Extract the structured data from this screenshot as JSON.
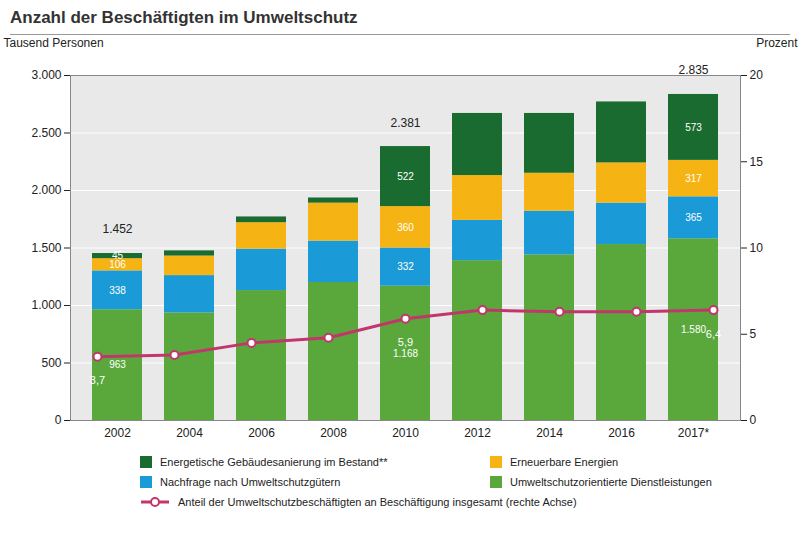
{
  "chart_data": {
    "type": "bar",
    "title": "Anzahl der Beschäftigten im Umweltschutz",
    "stacked": true,
    "data_labels": true,
    "grid": true,
    "legend": "bottom",
    "y_label": "Tausend Personen",
    "y2_label": "Prozent",
    "categories": [
      "2002",
      "2004",
      "2006",
      "2008",
      "2010",
      "2012",
      "2014",
      "2016",
      "2017*"
    ],
    "series": [
      {
        "name": "Umweltschutzorientierte Dienstleistungen",
        "type": "bar",
        "color": "#5aa83c",
        "values": [
          963,
          935,
          1130,
          1200,
          1168,
          1390,
          1440,
          1530,
          1580
        ],
        "value_labels": [
          "963",
          null,
          null,
          null,
          "1.168",
          null,
          null,
          null,
          "1.580"
        ]
      },
      {
        "name": "Nachfrage nach Umweltschutzgütern",
        "type": "bar",
        "color": "#1a9ad6",
        "values": [
          338,
          325,
          360,
          360,
          332,
          350,
          380,
          360,
          365
        ],
        "value_labels": [
          "338",
          null,
          null,
          null,
          "332",
          null,
          null,
          null,
          "365"
        ]
      },
      {
        "name": "Erneuerbare Energien",
        "type": "bar",
        "color": "#f5b414",
        "values": [
          106,
          170,
          230,
          330,
          360,
          390,
          330,
          350,
          317
        ],
        "value_labels": [
          "106",
          null,
          null,
          null,
          "360",
          null,
          null,
          null,
          "317"
        ]
      },
      {
        "name": "Energetische Gebäudesanierung im Bestand**",
        "type": "bar",
        "color": "#1a6b30",
        "values": [
          45,
          45,
          50,
          45,
          522,
          540,
          520,
          530,
          573
        ],
        "value_labels": [
          "45",
          null,
          null,
          null,
          "522",
          null,
          null,
          null,
          "573"
        ]
      },
      {
        "name": "Anteil der Umweltschutzbeschäftigten an Beschäftigung insgesamt (rechte Achse)",
        "type": "line",
        "axis": "y2",
        "color": "#c2366c",
        "marker": "circle",
        "values": [
          3.7,
          3.8,
          4.5,
          4.8,
          5.9,
          6.4,
          6.3,
          6.3,
          6.4
        ],
        "value_labels": [
          "3,7",
          null,
          null,
          null,
          "5,9",
          null,
          null,
          null,
          "6,4"
        ]
      }
    ],
    "annotations": [
      {
        "x": "2002",
        "value": 1452,
        "label": "1.452"
      },
      {
        "x": "2010",
        "value": 2381,
        "label": "2.381"
      },
      {
        "x": "2017*",
        "value": 2835,
        "label": "2.835"
      }
    ],
    "ylim": [
      0,
      3000
    ],
    "yticks": [
      0,
      500,
      {
        "value": 1000,
        "label": "1.000"
      },
      {
        "value": 1500,
        "label": "1.500"
      },
      {
        "value": 2000,
        "label": "2.000"
      },
      {
        "value": 2500,
        "label": "2.500"
      },
      {
        "value": 3000,
        "label": "3.000"
      }
    ],
    "y2lim": [
      0,
      20
    ],
    "y2ticks": [
      0,
      5,
      10,
      15,
      20
    ]
  }
}
